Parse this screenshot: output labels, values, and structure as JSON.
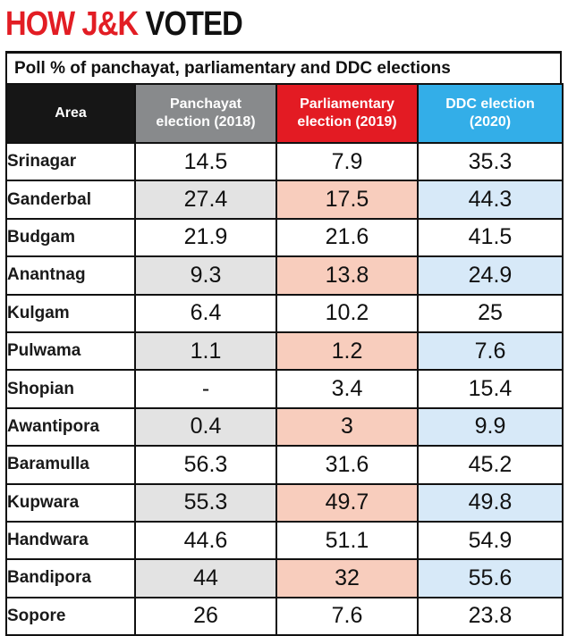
{
  "headline": {
    "part1": "HOW J&K",
    "part2": "VOTED"
  },
  "chart_data": {
    "type": "table",
    "title": "HOW J&K VOTED",
    "subtitle": "Poll % of panchayat, parliamentary and DDC elections",
    "columns": [
      {
        "label": "Area"
      },
      {
        "label_line1": "Panchayat",
        "label_line2": "election (2018)",
        "color": "#888a8c"
      },
      {
        "label_line1": "Parliamentary",
        "label_line2": "election (2019)",
        "color": "#e31b23"
      },
      {
        "label_line1": "DDC election",
        "label_line2": "(2020)",
        "color": "#33aee8"
      }
    ],
    "rows": [
      {
        "area": "Srinagar",
        "panchayat_2018": "14.5",
        "parliamentary_2019": "7.9",
        "ddc_2020": "35.3"
      },
      {
        "area": "Ganderbal",
        "panchayat_2018": "27.4",
        "parliamentary_2019": "17.5",
        "ddc_2020": "44.3"
      },
      {
        "area": "Budgam",
        "panchayat_2018": "21.9",
        "parliamentary_2019": "21.6",
        "ddc_2020": "41.5"
      },
      {
        "area": "Anantnag",
        "panchayat_2018": "9.3",
        "parliamentary_2019": "13.8",
        "ddc_2020": "24.9"
      },
      {
        "area": "Kulgam",
        "panchayat_2018": "6.4",
        "parliamentary_2019": "10.2",
        "ddc_2020": "25"
      },
      {
        "area": "Pulwama",
        "panchayat_2018": "1.1",
        "parliamentary_2019": "1.2",
        "ddc_2020": "7.6"
      },
      {
        "area": "Shopian",
        "panchayat_2018": "-",
        "parliamentary_2019": "3.4",
        "ddc_2020": "15.4"
      },
      {
        "area": "Awantipora",
        "panchayat_2018": "0.4",
        "parliamentary_2019": "3",
        "ddc_2020": "9.9"
      },
      {
        "area": "Baramulla",
        "panchayat_2018": "56.3",
        "parliamentary_2019": "31.6",
        "ddc_2020": "45.2"
      },
      {
        "area": "Kupwara",
        "panchayat_2018": "55.3",
        "parliamentary_2019": "49.7",
        "ddc_2020": "49.8"
      },
      {
        "area": "Handwara",
        "panchayat_2018": "44.6",
        "parliamentary_2019": "51.1",
        "ddc_2020": "54.9"
      },
      {
        "area": "Bandipora",
        "panchayat_2018": "44",
        "parliamentary_2019": "32",
        "ddc_2020": "55.6"
      },
      {
        "area": "Sopore",
        "panchayat_2018": "26",
        "parliamentary_2019": "7.6",
        "ddc_2020": "23.8"
      }
    ]
  }
}
